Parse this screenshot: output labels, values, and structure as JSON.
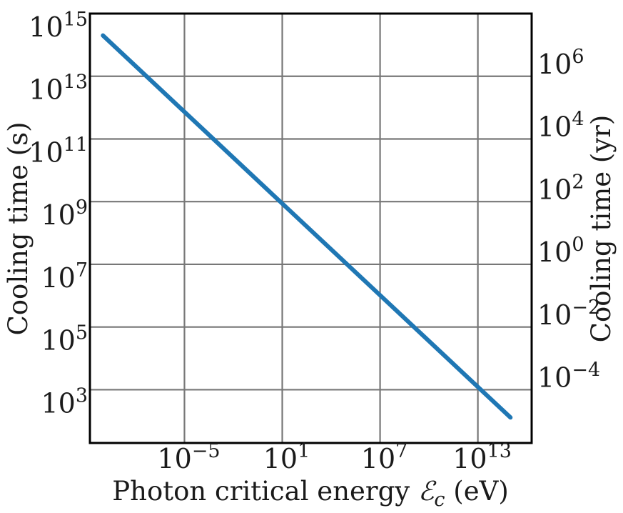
{
  "chart_data": {
    "type": "line",
    "x_scale": "log",
    "y_scale": "log",
    "grid": true,
    "xlabel": {
      "prefix": "Photon critical energy ",
      "symbol": "ℰ",
      "subscript": "c",
      "suffix": " (eV)"
    },
    "ylabel": "Cooling time (s)",
    "ylabel_right": "Cooling time (yr)",
    "xlim_exp": [
      -10.8,
      16.3
    ],
    "ylim_exp": [
      1.3,
      15
    ],
    "x_ticks": [
      {
        "base": "10",
        "exp": "−5",
        "value_exp": -5
      },
      {
        "base": "10",
        "exp": "1",
        "value_exp": 1
      },
      {
        "base": "10",
        "exp": "7",
        "value_exp": 7
      },
      {
        "base": "10",
        "exp": "13",
        "value_exp": 13
      }
    ],
    "y_ticks": [
      {
        "base": "10",
        "exp": "3",
        "value_exp": 3
      },
      {
        "base": "10",
        "exp": "5",
        "value_exp": 5
      },
      {
        "base": "10",
        "exp": "7",
        "value_exp": 7
      },
      {
        "base": "10",
        "exp": "9",
        "value_exp": 9
      },
      {
        "base": "10",
        "exp": "11",
        "value_exp": 11
      },
      {
        "base": "10",
        "exp": "13",
        "value_exp": 13
      },
      {
        "base": "10",
        "exp": "15",
        "value_exp": 15
      }
    ],
    "y_ticks_right": [
      {
        "base": "10",
        "exp": "−4",
        "value_exp": -4
      },
      {
        "base": "10",
        "exp": "−2",
        "value_exp": -2
      },
      {
        "base": "10",
        "exp": "0",
        "value_exp": 0
      },
      {
        "base": "10",
        "exp": "2",
        "value_exp": 2
      },
      {
        "base": "10",
        "exp": "4",
        "value_exp": 4
      },
      {
        "base": "10",
        "exp": "6",
        "value_exp": 6
      }
    ],
    "series": [
      {
        "x": [
          1e-10,
          1000000000000000.0
        ],
        "y": [
          200000000000000.0,
          130.0
        ],
        "color": "#1f77b4"
      }
    ]
  }
}
